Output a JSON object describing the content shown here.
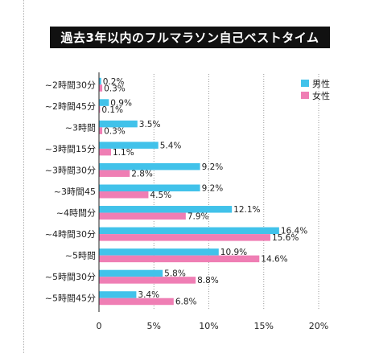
{
  "chart_data": {
    "type": "bar",
    "orientation": "horizontal",
    "title": "過去3年以内のフルマラソン自己ベストタイム",
    "categories": [
      "~2時間30分",
      "~2時間45分",
      "~3時間",
      "~3時間15分",
      "~3時間30分",
      "~3時間45",
      "~4時間分",
      "~4時間30分",
      "~5時間",
      "~5時間30分",
      "~5時間45分"
    ],
    "series": [
      {
        "name": "男性",
        "color": "#41c2ea",
        "values": [
          0.2,
          0.9,
          3.5,
          5.4,
          9.2,
          9.2,
          12.1,
          16.4,
          10.9,
          5.8,
          3.4
        ]
      },
      {
        "name": "女性",
        "color": "#ef7eb4",
        "values": [
          0.3,
          0.1,
          0.3,
          1.1,
          2.8,
          4.5,
          7.9,
          15.6,
          14.6,
          8.8,
          6.8
        ]
      }
    ],
    "xlim": [
      0,
      20
    ],
    "xticks": [
      "0",
      "5%",
      "10%",
      "15%",
      "20%"
    ],
    "xtick_values": [
      0,
      5,
      10,
      15,
      20
    ],
    "value_suffix": "%",
    "grid": "vertical dotted",
    "legend_position": "top-right"
  }
}
